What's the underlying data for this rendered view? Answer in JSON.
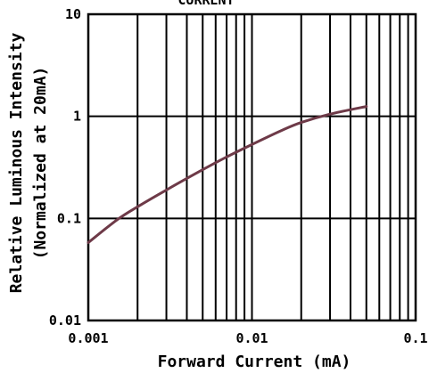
{
  "chart_data": {
    "type": "line",
    "title": "CURRENT",
    "xlabel": "Forward Current (mA)",
    "ylabel_line1": "Relative Luminous Intensity",
    "ylabel_line2": "(Normalized at 20mA)",
    "x_scale": "log",
    "y_scale": "log",
    "xlim": [
      0.001,
      0.1
    ],
    "ylim": [
      0.01,
      10
    ],
    "x_ticks": [
      {
        "value": 0.001,
        "label": "0.001"
      },
      {
        "value": 0.01,
        "label": "0.01"
      },
      {
        "value": 0.1,
        "label": "0.1"
      }
    ],
    "y_ticks": [
      {
        "value": 10,
        "label": "10"
      },
      {
        "value": 1,
        "label": "1"
      },
      {
        "value": 0.1,
        "label": "0.1"
      },
      {
        "value": 0.01,
        "label": "0.01"
      }
    ],
    "grid": true,
    "line_color": "#6e3a48",
    "series": [
      {
        "x": [
          0.001,
          0.0015,
          0.002,
          0.003,
          0.005,
          0.007,
          0.01,
          0.015,
          0.02,
          0.03,
          0.05
        ],
        "y": [
          0.058,
          0.097,
          0.13,
          0.19,
          0.3,
          0.4,
          0.53,
          0.72,
          0.87,
          1.05,
          1.25
        ]
      }
    ]
  }
}
